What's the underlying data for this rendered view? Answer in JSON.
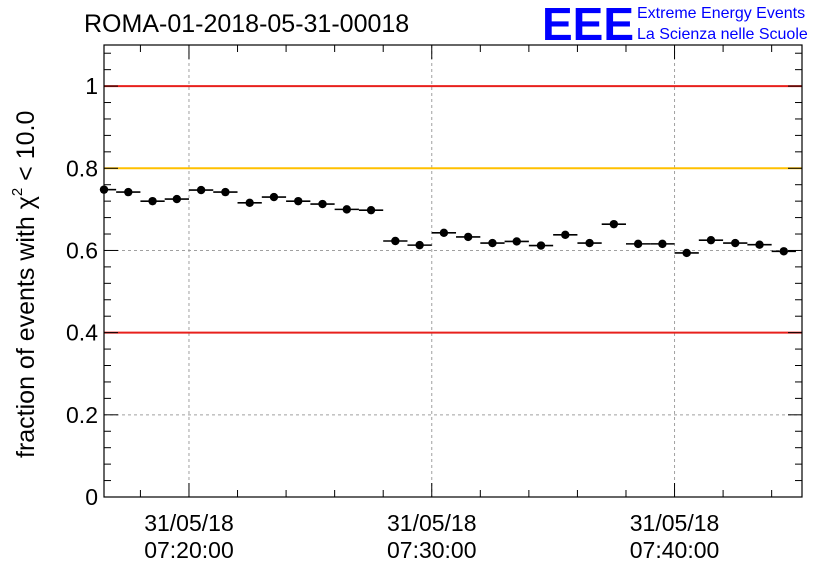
{
  "title": "ROMA-01-2018-05-31-00018",
  "logo": {
    "big": "EEE",
    "line1": "Extreme Energy Events",
    "line2": "La Scienza nelle Scuole",
    "color": "#0000ff"
  },
  "chart_data": {
    "type": "scatter",
    "title": "ROMA-01-2018-05-31-00018",
    "ylabel": {
      "prefix": "fraction of events with ",
      "chi": "χ",
      "sup": "2",
      "suffix": " < 10.0"
    },
    "xlabel": "",
    "ylim": [
      0,
      1.1
    ],
    "xlim": [
      "07:16:30",
      "07:45:15"
    ],
    "grid": true,
    "yticks": [
      {
        "value": 0,
        "label": "0"
      },
      {
        "value": 0.2,
        "label": "0.2"
      },
      {
        "value": 0.4,
        "label": "0.4"
      },
      {
        "value": 0.6,
        "label": "0.6"
      },
      {
        "value": 0.8,
        "label": "0.8"
      },
      {
        "value": 1,
        "label": "1"
      }
    ],
    "xticks": [
      {
        "time": "07:20:00",
        "date_label": "31/05/18",
        "time_label": "07:20:00"
      },
      {
        "time": "07:30:00",
        "date_label": "31/05/18",
        "time_label": "07:30:00"
      },
      {
        "time": "07:40:00",
        "date_label": "31/05/18",
        "time_label": "07:40:00"
      }
    ],
    "reference_lines": [
      {
        "y": 1.0,
        "color": "#e8201c"
      },
      {
        "y": 0.8,
        "color": "#ffc000"
      },
      {
        "y": 0.4,
        "color": "#e8201c"
      }
    ],
    "bin_width_minutes": 1,
    "series": [
      {
        "x": [
          "07:16:30",
          "07:17:30",
          "07:18:30",
          "07:19:30",
          "07:20:30",
          "07:21:30",
          "07:22:30",
          "07:23:30",
          "07:24:30",
          "07:25:30",
          "07:26:30",
          "07:27:30",
          "07:28:30",
          "07:29:30",
          "07:30:30",
          "07:31:30",
          "07:32:30",
          "07:33:30",
          "07:34:30",
          "07:35:30",
          "07:36:30",
          "07:37:30",
          "07:38:30",
          "07:39:30",
          "07:40:30",
          "07:41:30",
          "07:42:30",
          "07:43:30",
          "07:44:30"
        ],
        "y": [
          0.748,
          0.742,
          0.72,
          0.725,
          0.747,
          0.742,
          0.716,
          0.73,
          0.72,
          0.713,
          0.7,
          0.698,
          0.623,
          0.613,
          0.643,
          0.633,
          0.618,
          0.622,
          0.612,
          0.638,
          0.618,
          0.664,
          0.616,
          0.616,
          0.594,
          0.625,
          0.618,
          0.614,
          0.598
        ],
        "yerr": 0.006,
        "color": "#000000"
      }
    ]
  }
}
